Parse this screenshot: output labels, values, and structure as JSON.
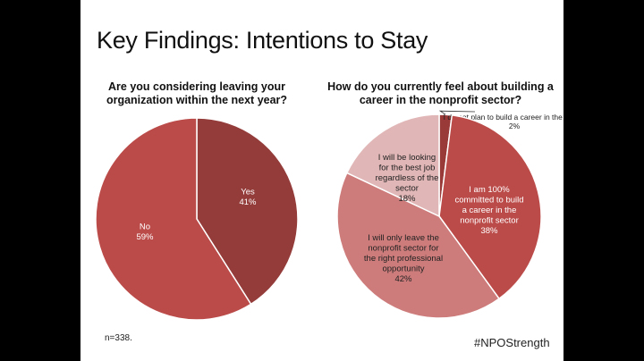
{
  "slide": {
    "title": "Key Findings: Intentions to Stay",
    "note": "n=338.",
    "hashtag": "#NPOStrength"
  },
  "chart_data": [
    {
      "type": "pie",
      "title": "Are you considering leaving your organization within the next year?",
      "slices": [
        {
          "label": "Yes",
          "value": 41,
          "value_label": "41%",
          "color": "#943c3a"
        },
        {
          "label": "No",
          "value": 59,
          "value_label": "59%",
          "color": "#bb4b49"
        }
      ]
    },
    {
      "type": "pie",
      "title": "How do you currently feel about building a career in the nonprofit sector?",
      "slices": [
        {
          "label": "I do not plan to build a career in the sector",
          "value": 2,
          "value_label": "2%",
          "color": "#9a3a38"
        },
        {
          "label": "I am 100% committed to build a career in the nonprofit sector",
          "value": 38,
          "value_label": "38%",
          "color": "#bb4b49"
        },
        {
          "label": "I will only leave the nonprofit sector for the right professional opportunity",
          "value": 42,
          "value_label": "42%",
          "color": "#cd7c7b"
        },
        {
          "label": "I will be looking for the best job regardless of the sector",
          "value": 18,
          "value_label": "18%",
          "color": "#e1b6b6"
        }
      ]
    }
  ]
}
